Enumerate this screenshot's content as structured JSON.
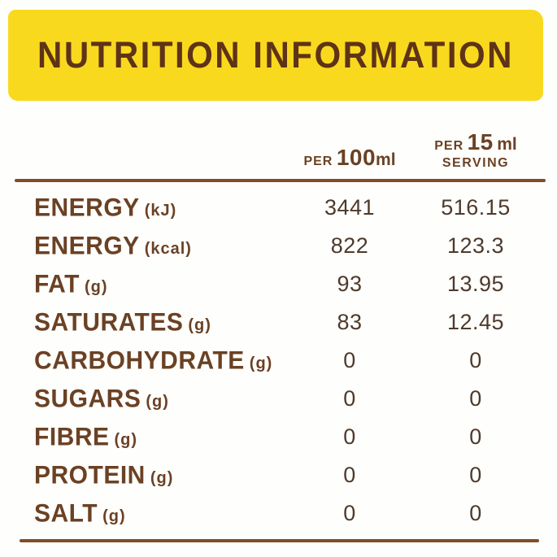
{
  "title": "NUTRITION INFORMATION",
  "colors": {
    "banner_yellow": "#F9D91E",
    "title_brown": "#5E3317",
    "label_brown": "#6B4124",
    "value_brown": "#4E3A2C",
    "rule_brown": "#7F4E2A",
    "background": "#FEFEFC"
  },
  "columns": [
    {
      "prefix": "PER",
      "amount": "100",
      "unit": "ml",
      "suffix": ""
    },
    {
      "prefix": "PER",
      "amount": "15",
      "unit": "ml",
      "suffix": "SERVING"
    }
  ],
  "rows": [
    {
      "label": "ENERGY",
      "unit": "(kJ)",
      "per_100ml": "3441",
      "per_15ml": "516.15"
    },
    {
      "label": "ENERGY",
      "unit": "(kcal)",
      "per_100ml": "822",
      "per_15ml": "123.3"
    },
    {
      "label": "FAT",
      "unit": "(g)",
      "per_100ml": "93",
      "per_15ml": "13.95"
    },
    {
      "label": "SATURATES",
      "unit": "(g)",
      "per_100ml": "83",
      "per_15ml": "12.45"
    },
    {
      "label": "CARBOHYDRATE",
      "unit": "(g)",
      "per_100ml": "0",
      "per_15ml": "0"
    },
    {
      "label": "SUGARS",
      "unit": "(g)",
      "per_100ml": "0",
      "per_15ml": "0"
    },
    {
      "label": "FIBRE",
      "unit": "(g)",
      "per_100ml": "0",
      "per_15ml": "0"
    },
    {
      "label": "PROTEIN",
      "unit": "(g)",
      "per_100ml": "0",
      "per_15ml": "0"
    },
    {
      "label": "SALT",
      "unit": "(g)",
      "per_100ml": "0",
      "per_15ml": "0"
    }
  ]
}
